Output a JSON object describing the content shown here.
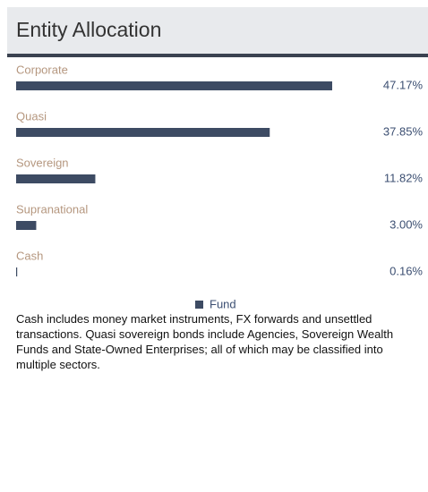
{
  "chart_data": {
    "type": "bar",
    "orientation": "horizontal",
    "title": "Entity Allocation",
    "categories": [
      "Corporate",
      "Quasi",
      "Sovereign",
      "Supranational",
      "Cash"
    ],
    "series": [
      {
        "name": "Fund",
        "color": "#3d4b63",
        "values": [
          47.17,
          37.85,
          11.82,
          3.0,
          0.16
        ],
        "value_labels": [
          "47.17%",
          "37.85%",
          "11.82%",
          "3.00%",
          "0.16%"
        ]
      }
    ],
    "xlim": [
      0,
      60
    ]
  },
  "footnote": "Cash includes money market instruments, FX forwards and unsettled transactions. Quasi sovereign bonds include Agencies, Sovereign Wealth Funds and State-Owned Enterprises; all of which may be classified into multiple sectors."
}
